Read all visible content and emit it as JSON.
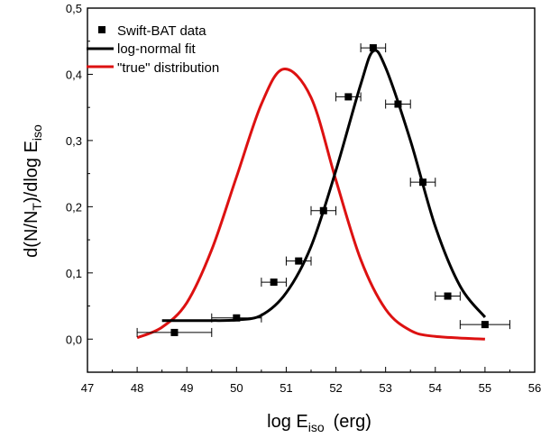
{
  "chart_data": {
    "type": "scatter",
    "xlabel": "log E",
    "xlabel_sub": "iso",
    "xlabel_unit": "(erg)",
    "ylabel_parts": [
      "d(N/N",
      "T",
      ")/dlog E",
      "iso"
    ],
    "xlim": [
      47,
      56
    ],
    "ylim": [
      -0.05,
      0.5
    ],
    "xticks": [
      "47",
      "48",
      "49",
      "50",
      "51",
      "52",
      "53",
      "54",
      "55",
      "56"
    ],
    "yticks": [
      "0,0",
      "0,1",
      "0,2",
      "0,3",
      "0,4",
      "0,5"
    ],
    "legend_position": "top-left",
    "grid": false,
    "series": [
      {
        "name": "Swift-BAT data",
        "kind": "points",
        "color": "#000000",
        "points": [
          {
            "x": 48.75,
            "y": 0.01,
            "xerr": 0.75
          },
          {
            "x": 50.0,
            "y": 0.032,
            "xerr": 0.5
          },
          {
            "x": 50.75,
            "y": 0.086,
            "xerr": 0.25
          },
          {
            "x": 51.25,
            "y": 0.118,
            "xerr": 0.25
          },
          {
            "x": 51.75,
            "y": 0.194,
            "xerr": 0.25
          },
          {
            "x": 52.25,
            "y": 0.366,
            "xerr": 0.25
          },
          {
            "x": 52.75,
            "y": 0.44,
            "xerr": 0.25
          },
          {
            "x": 53.25,
            "y": 0.355,
            "xerr": 0.25
          },
          {
            "x": 53.75,
            "y": 0.237,
            "xerr": 0.25
          },
          {
            "x": 54.25,
            "y": 0.065,
            "xerr": 0.25
          },
          {
            "x": 55.0,
            "y": 0.022,
            "xerr": 0.5
          }
        ]
      },
      {
        "name": "log-normal fit",
        "kind": "line",
        "color": "#000000",
        "points": [
          [
            48.5,
            0.028
          ],
          [
            49.0,
            0.028
          ],
          [
            49.5,
            0.028
          ],
          [
            50.0,
            0.029
          ],
          [
            50.5,
            0.036
          ],
          [
            51.0,
            0.07
          ],
          [
            51.5,
            0.14
          ],
          [
            52.0,
            0.255
          ],
          [
            52.5,
            0.385
          ],
          [
            52.75,
            0.435
          ],
          [
            53.0,
            0.41
          ],
          [
            53.5,
            0.3
          ],
          [
            54.0,
            0.17
          ],
          [
            54.5,
            0.08
          ],
          [
            55.0,
            0.033
          ]
        ]
      },
      {
        "name": "\"true\" distribution",
        "kind": "line",
        "color": "#dd1111",
        "points": [
          [
            48.0,
            0.002
          ],
          [
            48.5,
            0.018
          ],
          [
            49.0,
            0.055
          ],
          [
            49.5,
            0.135
          ],
          [
            50.0,
            0.245
          ],
          [
            50.5,
            0.355
          ],
          [
            50.95,
            0.408
          ],
          [
            51.5,
            0.365
          ],
          [
            52.0,
            0.24
          ],
          [
            52.5,
            0.12
          ],
          [
            53.0,
            0.045
          ],
          [
            53.5,
            0.013
          ],
          [
            54.0,
            0.004
          ],
          [
            55.0,
            0.0
          ]
        ]
      }
    ]
  }
}
